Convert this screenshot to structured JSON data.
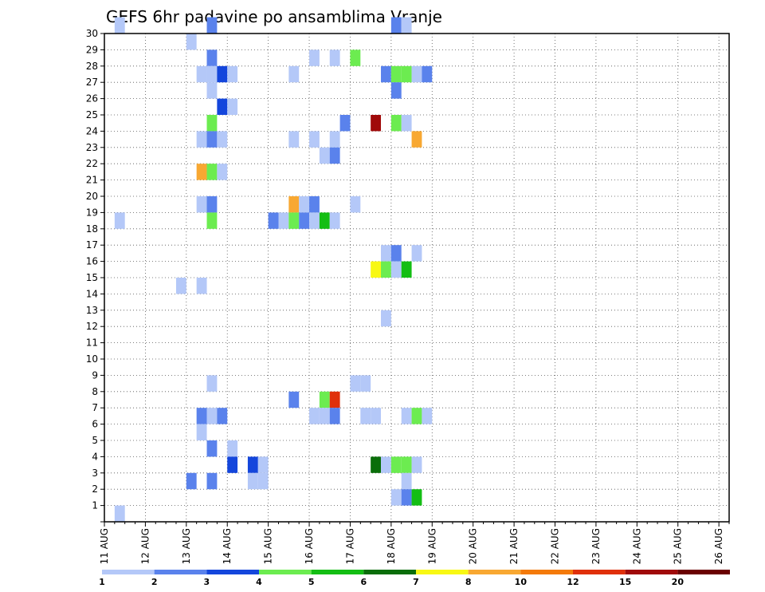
{
  "chart_data": {
    "type": "heatmap",
    "title": "GEFS 6hr padavine po ansamblima Vranje",
    "xlabel": "",
    "ylabel": "",
    "x_ticks": [
      "11 AUG",
      "12 AUG",
      "13 AUG",
      "14 AUG",
      "15 AUG",
      "16 AUG",
      "17 AUG",
      "18 AUG",
      "19 AUG",
      "20 AUG",
      "21 AUG",
      "22 AUG",
      "23 AUG",
      "24 AUG",
      "25 AUG",
      "26 AUG"
    ],
    "x_range": [
      0,
      61
    ],
    "y_ticks": [
      1,
      2,
      3,
      4,
      5,
      6,
      7,
      8,
      9,
      10,
      11,
      12,
      13,
      14,
      15,
      16,
      17,
      18,
      19,
      20,
      21,
      22,
      23,
      24,
      25,
      26,
      27,
      28,
      29,
      30
    ],
    "y_range": [
      0,
      30
    ],
    "grid": true,
    "legend": {
      "placement": "bottom",
      "thresholds": [
        "1",
        "2",
        "3",
        "4",
        "5",
        "6",
        "7",
        "8",
        "10",
        "12",
        "15",
        "20"
      ],
      "colors": [
        "#b4c8f8",
        "#5a82ec",
        "#1446dc",
        "#6cec50",
        "#14be14",
        "#0a6e0a",
        "#f8f814",
        "#f8a832",
        "#f47a0a",
        "#e0300a",
        "#a00a0a",
        "#6a0000"
      ]
    },
    "cells": [
      [
        1,
        30,
        0
      ],
      [
        10,
        30,
        1
      ],
      [
        28,
        30,
        1
      ],
      [
        29,
        30,
        0
      ],
      [
        8,
        29,
        0
      ],
      [
        10,
        28,
        1
      ],
      [
        20,
        28,
        0
      ],
      [
        22,
        28,
        0
      ],
      [
        24,
        28,
        3
      ],
      [
        9,
        27,
        0
      ],
      [
        10,
        27,
        0
      ],
      [
        11,
        27,
        2
      ],
      [
        12,
        27,
        0
      ],
      [
        18,
        27,
        0
      ],
      [
        27,
        27,
        1
      ],
      [
        28,
        27,
        3
      ],
      [
        29,
        27,
        3
      ],
      [
        30,
        27,
        0
      ],
      [
        31,
        27,
        1
      ],
      [
        10,
        26,
        0
      ],
      [
        28,
        26,
        1
      ],
      [
        11,
        25,
        2
      ],
      [
        12,
        25,
        0
      ],
      [
        10,
        24,
        3
      ],
      [
        23,
        24,
        1
      ],
      [
        26,
        24,
        10
      ],
      [
        28,
        24,
        3
      ],
      [
        29,
        24,
        0
      ],
      [
        9,
        23,
        0
      ],
      [
        10,
        23,
        1
      ],
      [
        11,
        23,
        0
      ],
      [
        18,
        23,
        0
      ],
      [
        20,
        23,
        0
      ],
      [
        22,
        23,
        0
      ],
      [
        30,
        23,
        7
      ],
      [
        21,
        22,
        0
      ],
      [
        22,
        22,
        1
      ],
      [
        9,
        21,
        7
      ],
      [
        10,
        21,
        3
      ],
      [
        11,
        21,
        0
      ],
      [
        9,
        19,
        0
      ],
      [
        10,
        19,
        1
      ],
      [
        18,
        19,
        7
      ],
      [
        19,
        19,
        0
      ],
      [
        20,
        19,
        1
      ],
      [
        24,
        19,
        0
      ],
      [
        1,
        18,
        0
      ],
      [
        10,
        18,
        3
      ],
      [
        16,
        18,
        1
      ],
      [
        17,
        18,
        0
      ],
      [
        18,
        18,
        3
      ],
      [
        19,
        18,
        1
      ],
      [
        20,
        18,
        0
      ],
      [
        21,
        18,
        4
      ],
      [
        22,
        18,
        0
      ],
      [
        27,
        16,
        0
      ],
      [
        28,
        16,
        1
      ],
      [
        30,
        16,
        0
      ],
      [
        26,
        15,
        6
      ],
      [
        27,
        15,
        3
      ],
      [
        28,
        15,
        0
      ],
      [
        29,
        15,
        4
      ],
      [
        7,
        14,
        0
      ],
      [
        9,
        14,
        0
      ],
      [
        27,
        12,
        0
      ],
      [
        10,
        8,
        0
      ],
      [
        24,
        8,
        0
      ],
      [
        25,
        8,
        0
      ],
      [
        18,
        7,
        1
      ],
      [
        21,
        7,
        3
      ],
      [
        22,
        7,
        9
      ],
      [
        9,
        6,
        1
      ],
      [
        10,
        6,
        0
      ],
      [
        11,
        6,
        1
      ],
      [
        20,
        6,
        0
      ],
      [
        21,
        6,
        0
      ],
      [
        22,
        6,
        1
      ],
      [
        25,
        6,
        0
      ],
      [
        26,
        6,
        0
      ],
      [
        29,
        6,
        0
      ],
      [
        30,
        6,
        3
      ],
      [
        31,
        6,
        0
      ],
      [
        9,
        5,
        0
      ],
      [
        10,
        4,
        1
      ],
      [
        12,
        4,
        0
      ],
      [
        12,
        3,
        2
      ],
      [
        14,
        3,
        2
      ],
      [
        15,
        3,
        0
      ],
      [
        26,
        3,
        5
      ],
      [
        27,
        3,
        0
      ],
      [
        28,
        3,
        3
      ],
      [
        29,
        3,
        3
      ],
      [
        30,
        3,
        0
      ],
      [
        8,
        2,
        1
      ],
      [
        10,
        2,
        1
      ],
      [
        14,
        2,
        0
      ],
      [
        15,
        2,
        0
      ],
      [
        29,
        2,
        0
      ],
      [
        28,
        1,
        0
      ],
      [
        29,
        1,
        1
      ],
      [
        30,
        1,
        4
      ],
      [
        1,
        0,
        0
      ]
    ]
  }
}
